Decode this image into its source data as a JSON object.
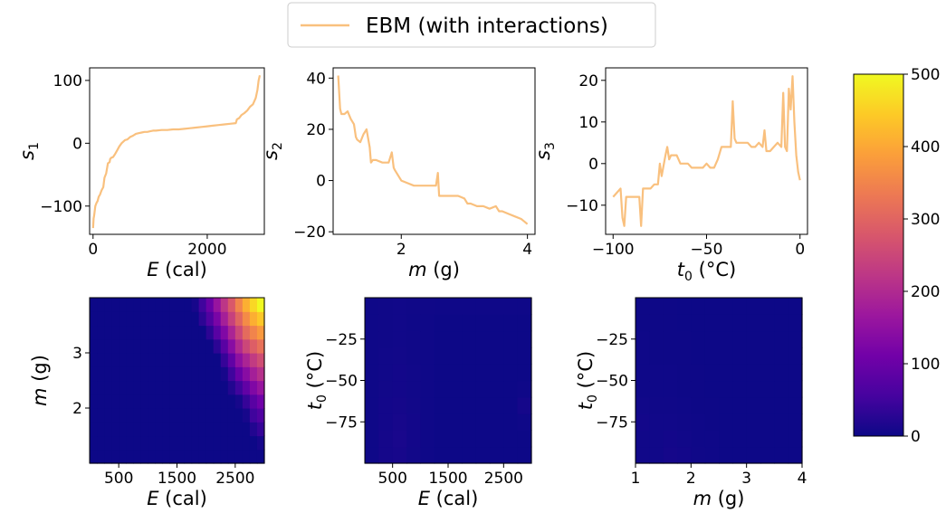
{
  "legend": {
    "label": "EBM (with interactions)",
    "color": "#f9c07e"
  },
  "colorbar": {
    "ticks": [
      0,
      100,
      200,
      300,
      400,
      500
    ],
    "range": [
      0,
      500
    ],
    "colormap": [
      "#0d0887",
      "#46039f",
      "#7201a8",
      "#9c179e",
      "#bd3786",
      "#d8576b",
      "#ed7953",
      "#fb9f3a",
      "#fdca26",
      "#f0f921"
    ]
  },
  "chart_data": [
    {
      "id": "s1",
      "type": "line",
      "xlabel_main": "E",
      "xlabel_unit": " (cal)",
      "ylabel_main": "s",
      "ylabel_sub": "1",
      "xlim": [
        -60,
        3000
      ],
      "ylim": [
        -145,
        120
      ],
      "xticks": [
        0,
        2000
      ],
      "yticks": [
        -100,
        0,
        100
      ],
      "yticklabels": [
        "−100",
        "0",
        "100"
      ],
      "series": [
        {
          "color": "#f9c07e",
          "x": [
            0,
            10,
            20,
            40,
            60,
            80,
            100,
            120,
            150,
            180,
            200,
            230,
            260,
            290,
            300,
            320,
            350,
            380,
            400,
            430,
            460,
            500,
            560,
            600,
            650,
            700,
            750,
            800,
            850,
            900,
            950,
            1000,
            1050,
            1100,
            1200,
            1300,
            1400,
            1500,
            1600,
            1700,
            1800,
            1900,
            2000,
            2100,
            2200,
            2300,
            2400,
            2500,
            2520,
            2560,
            2600,
            2650,
            2700,
            2750,
            2800,
            2850,
            2880,
            2900,
            2920
          ],
          "y": [
            -135,
            -120,
            -115,
            -100,
            -95,
            -92,
            -85,
            -82,
            -75,
            -70,
            -55,
            -48,
            -32,
            -30,
            -25,
            -23,
            -22,
            -18,
            -15,
            -10,
            -5,
            0,
            5,
            6,
            10,
            12,
            15,
            16,
            17,
            18,
            18,
            19,
            20,
            20,
            21,
            21,
            22,
            22,
            23,
            24,
            25,
            26,
            27,
            28,
            29,
            30,
            31,
            32,
            38,
            40,
            45,
            48,
            52,
            58,
            62,
            72,
            85,
            100,
            108
          ]
        }
      ]
    },
    {
      "id": "s2",
      "type": "line",
      "xlabel_main": "m",
      "xlabel_unit": " (g)",
      "ylabel_main": "s",
      "ylabel_sub": "2",
      "xlim": [
        0.92,
        4.12
      ],
      "ylim": [
        -21,
        44
      ],
      "xticks": [
        2,
        4
      ],
      "yticks": [
        -20,
        0,
        20,
        40
      ],
      "yticklabels": [
        "−20",
        "0",
        "20",
        "40"
      ],
      "series": [
        {
          "color": "#f9c07e",
          "x": [
            1.0,
            1.03,
            1.05,
            1.1,
            1.15,
            1.2,
            1.25,
            1.28,
            1.3,
            1.35,
            1.4,
            1.45,
            1.5,
            1.52,
            1.55,
            1.6,
            1.7,
            1.8,
            1.85,
            1.88,
            1.9,
            2.0,
            2.1,
            2.2,
            2.3,
            2.4,
            2.5,
            2.55,
            2.58,
            2.6,
            2.7,
            2.8,
            2.9,
            3.0,
            3.05,
            3.1,
            3.2,
            3.3,
            3.4,
            3.5,
            3.55,
            3.6,
            3.7,
            3.8,
            3.9,
            3.95,
            4.0
          ],
          "y": [
            41,
            28,
            26,
            26,
            27,
            24,
            22,
            17,
            16,
            15,
            18,
            20,
            13,
            7,
            8,
            8,
            7,
            7,
            11,
            5,
            4,
            0,
            -1,
            -2,
            -2,
            -2,
            -2,
            -2,
            3,
            -6,
            -6,
            -6,
            -6,
            -7,
            -9,
            -9,
            -10,
            -10,
            -11,
            -10,
            -12,
            -12,
            -13,
            -14,
            -15,
            -16,
            -17
          ]
        }
      ]
    },
    {
      "id": "s3",
      "type": "line",
      "xlabel_main": "t",
      "xlabel_sub": "0",
      "xlabel_unit": " (°C)",
      "ylabel_main": "s",
      "ylabel_sub": "3",
      "xlim": [
        -104,
        4
      ],
      "ylim": [
        -17,
        23
      ],
      "xticks": [
        -100,
        -50,
        0
      ],
      "yticks": [
        -10,
        0,
        10,
        20
      ],
      "xticklabels": [
        "−100",
        "−50",
        "0"
      ],
      "yticklabels": [
        "−10",
        "0",
        "10",
        "20"
      ],
      "series": [
        {
          "color": "#f9c07e",
          "x": [
            -100,
            -98,
            -96,
            -95,
            -94,
            -93,
            -92,
            -90,
            -88,
            -86,
            -85,
            -84,
            -82,
            -80,
            -78,
            -76,
            -75,
            -74,
            -72,
            -71,
            -70,
            -69,
            -68,
            -66,
            -64,
            -62,
            -60,
            -58,
            -56,
            -54,
            -52,
            -50,
            -48,
            -46,
            -44,
            -42,
            -40,
            -38,
            -37,
            -36,
            -35,
            -34,
            -32,
            -30,
            -28,
            -26,
            -24,
            -22,
            -20,
            -19,
            -18,
            -16,
            -14,
            -12,
            -10,
            -9,
            -8,
            -7,
            -6,
            -5,
            -4,
            -3,
            -2,
            -1,
            0
          ],
          "y": [
            -8,
            -7,
            -6,
            -13,
            -15,
            -8,
            -8,
            -8,
            -8,
            -8,
            -15,
            -6,
            -6,
            -6,
            -5,
            -5,
            0,
            -3,
            2,
            4,
            1,
            2,
            2,
            2,
            0,
            0,
            0,
            -1,
            -1,
            -1,
            -1,
            0,
            -1,
            -1,
            1,
            4,
            4,
            4,
            4,
            15,
            6,
            5,
            5,
            5,
            5,
            4,
            4,
            5,
            4,
            8,
            3,
            3,
            4,
            5,
            4,
            17,
            4,
            3,
            18,
            13,
            21,
            10,
            2,
            -2,
            -4
          ]
        }
      ]
    },
    {
      "id": "h1",
      "type": "heatmap",
      "xlabel_main": "E",
      "xlabel_unit": " (cal)",
      "ylabel_main": "m",
      "ylabel_unit": " (g)",
      "xlim": [
        0,
        3000
      ],
      "ylim": [
        1,
        4
      ],
      "xticks": [
        500,
        1500,
        2500
      ],
      "yticks": [
        2,
        3
      ],
      "values": [
        [
          0,
          0,
          0,
          0,
          0,
          0,
          0,
          0,
          0,
          0,
          0,
          0,
          0,
          0,
          0,
          0,
          0,
          0,
          0,
          0,
          0,
          0,
          0,
          0
        ],
        [
          0,
          0,
          0,
          0,
          0,
          0,
          0,
          0,
          0,
          0,
          0,
          0,
          0,
          0,
          0,
          0,
          0,
          0,
          0,
          0,
          0,
          0,
          0,
          10
        ],
        [
          0,
          0,
          0,
          0,
          0,
          0,
          0,
          0,
          0,
          0,
          0,
          0,
          0,
          0,
          0,
          0,
          0,
          0,
          0,
          0,
          0,
          0,
          20,
          40
        ],
        [
          0,
          0,
          0,
          0,
          0,
          0,
          0,
          0,
          0,
          0,
          0,
          0,
          0,
          0,
          0,
          0,
          0,
          0,
          0,
          0,
          0,
          10,
          50,
          70
        ],
        [
          0,
          0,
          0,
          0,
          0,
          0,
          0,
          0,
          0,
          0,
          0,
          0,
          0,
          0,
          0,
          0,
          0,
          0,
          0,
          0,
          10,
          40,
          80,
          110
        ],
        [
          0,
          0,
          0,
          0,
          0,
          0,
          0,
          0,
          0,
          0,
          0,
          0,
          0,
          0,
          0,
          0,
          0,
          0,
          0,
          20,
          50,
          90,
          130,
          160
        ],
        [
          0,
          0,
          0,
          0,
          0,
          0,
          0,
          0,
          0,
          0,
          0,
          0,
          0,
          0,
          0,
          0,
          0,
          0,
          10,
          50,
          100,
          140,
          180,
          210
        ],
        [
          0,
          0,
          0,
          0,
          0,
          0,
          0,
          0,
          0,
          0,
          0,
          0,
          0,
          0,
          0,
          0,
          0,
          0,
          40,
          90,
          150,
          190,
          230,
          260
        ],
        [
          0,
          0,
          0,
          0,
          0,
          0,
          0,
          0,
          0,
          0,
          0,
          0,
          0,
          0,
          0,
          0,
          0,
          30,
          80,
          140,
          200,
          250,
          290,
          320
        ],
        [
          0,
          0,
          0,
          0,
          0,
          0,
          0,
          0,
          0,
          0,
          0,
          0,
          0,
          0,
          0,
          0,
          30,
          80,
          130,
          190,
          250,
          310,
          350,
          380
        ],
        [
          0,
          0,
          0,
          0,
          0,
          0,
          0,
          0,
          0,
          0,
          0,
          0,
          0,
          0,
          0,
          30,
          70,
          120,
          180,
          240,
          300,
          360,
          410,
          440
        ],
        [
          0,
          0,
          0,
          0,
          0,
          0,
          0,
          0,
          0,
          0,
          0,
          0,
          0,
          0,
          10,
          50,
          100,
          160,
          220,
          280,
          350,
          410,
          460,
          500
        ]
      ]
    },
    {
      "id": "h2",
      "type": "heatmap",
      "xlabel_main": "E",
      "xlabel_unit": " (cal)",
      "ylabel_main": "t",
      "ylabel_sub": "0",
      "ylabel_unit": " (°C)",
      "xlim": [
        0,
        3000
      ],
      "ylim": [
        -100,
        0
      ],
      "xticks": [
        500,
        1500,
        2500
      ],
      "yticks": [
        -25,
        -50,
        -75
      ],
      "yticklabels": [
        "−25",
        "−50",
        "−75"
      ],
      "values": [
        [
          2,
          8,
          10,
          5,
          2,
          0,
          0,
          0,
          0,
          0,
          0,
          0
        ],
        [
          2,
          8,
          12,
          6,
          2,
          0,
          0,
          0,
          0,
          0,
          0,
          0
        ],
        [
          2,
          6,
          10,
          6,
          2,
          0,
          0,
          0,
          0,
          0,
          0,
          2
        ],
        [
          2,
          6,
          8,
          5,
          2,
          0,
          0,
          0,
          0,
          0,
          0,
          8
        ],
        [
          2,
          5,
          6,
          4,
          2,
          0,
          0,
          0,
          0,
          0,
          0,
          2
        ],
        [
          2,
          4,
          6,
          4,
          2,
          0,
          0,
          0,
          0,
          0,
          0,
          0
        ],
        [
          2,
          4,
          5,
          3,
          2,
          0,
          0,
          0,
          0,
          0,
          0,
          0
        ],
        [
          2,
          3,
          4,
          3,
          2,
          0,
          0,
          0,
          0,
          0,
          0,
          0
        ],
        [
          2,
          3,
          4,
          2,
          2,
          0,
          0,
          0,
          0,
          0,
          0,
          0
        ],
        [
          2,
          3,
          4,
          3,
          3,
          2,
          2,
          2,
          2,
          2,
          2,
          2
        ]
      ]
    },
    {
      "id": "h3",
      "type": "heatmap",
      "xlabel_main": "m",
      "xlabel_unit": " (g)",
      "ylabel_main": "t",
      "ylabel_sub": "0",
      "ylabel_unit": " (°C)",
      "xlim": [
        1,
        4
      ],
      "ylim": [
        -100,
        0
      ],
      "xticks": [
        1,
        2,
        3,
        4
      ],
      "yticks": [
        -25,
        -50,
        -75
      ],
      "yticklabels": [
        "−25",
        "−50",
        "−75"
      ],
      "values": [
        [
          4,
          4,
          8,
          6,
          3,
          2,
          0,
          0,
          0,
          0,
          0,
          0
        ],
        [
          4,
          4,
          6,
          4,
          2,
          2,
          0,
          0,
          0,
          0,
          0,
          0
        ],
        [
          6,
          4,
          4,
          3,
          2,
          1,
          0,
          0,
          0,
          0,
          0,
          0
        ],
        [
          4,
          3,
          3,
          2,
          1,
          1,
          0,
          0,
          0,
          0,
          0,
          0
        ],
        [
          2,
          2,
          2,
          1,
          1,
          0,
          0,
          0,
          0,
          0,
          0,
          0
        ],
        [
          2,
          2,
          2,
          1,
          1,
          0,
          0,
          0,
          0,
          0,
          0,
          0
        ],
        [
          2,
          1,
          1,
          1,
          0,
          0,
          0,
          0,
          0,
          0,
          0,
          0
        ],
        [
          2,
          1,
          1,
          1,
          0,
          0,
          0,
          0,
          0,
          0,
          0,
          0
        ],
        [
          1,
          1,
          1,
          0,
          0,
          0,
          0,
          0,
          0,
          0,
          0,
          0
        ],
        [
          1,
          1,
          1,
          0,
          0,
          0,
          0,
          0,
          0,
          0,
          0,
          0
        ]
      ]
    }
  ]
}
